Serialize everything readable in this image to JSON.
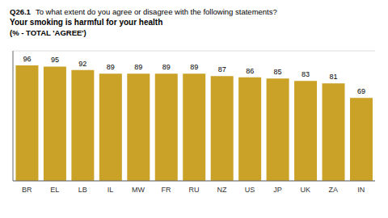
{
  "chart_data": {
    "type": "bar",
    "annotations": [
      "Q26.1",
      "To what extent do you agree or disagree with the following statements?"
    ],
    "title": "Your smoking is harmful for your health",
    "subtitle": "(% - TOTAL 'AGREE')",
    "categories": [
      "BR",
      "EL",
      "LB",
      "IL",
      "MW",
      "FR",
      "RU",
      "NZ",
      "US",
      "JP",
      "UK",
      "ZA",
      "IN"
    ],
    "values": [
      96,
      95,
      92,
      89,
      89,
      89,
      89,
      87,
      86,
      85,
      83,
      81,
      69
    ],
    "color": "#C9A227",
    "ylim": [
      0,
      108
    ],
    "yticks": [
      0,
      20,
      40,
      60,
      80,
      100
    ],
    "grid": true,
    "data_labels": true,
    "tick_labels": "x"
  }
}
